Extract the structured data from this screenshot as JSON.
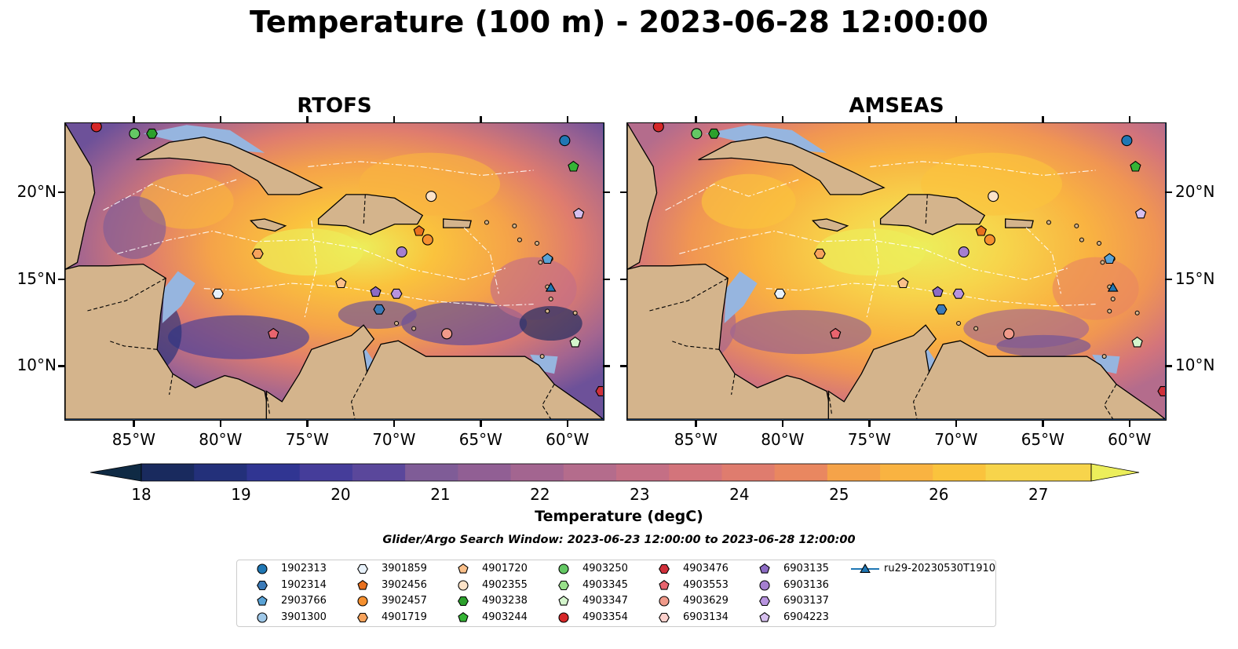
{
  "title": "Temperature (100 m) - 2023-06-28 12:00:00",
  "panels": [
    {
      "title": "RTOFS"
    },
    {
      "title": "AMSEAS"
    }
  ],
  "axes": {
    "lon_labels": [
      "85°W",
      "80°W",
      "75°W",
      "70°W",
      "65°W",
      "60°W"
    ],
    "lat_labels": [
      "20°N",
      "15°N",
      "10°N"
    ],
    "lon_range": [
      -89,
      -58
    ],
    "lat_range": [
      7,
      24
    ]
  },
  "colorbar": {
    "label": "Temperature (degC)",
    "ticks": [
      "18",
      "19",
      "20",
      "21",
      "22",
      "23",
      "24",
      "25",
      "26",
      "27"
    ],
    "min": 18,
    "max": 27,
    "extend": "both",
    "colors": [
      "#0f2a44",
      "#192a5e",
      "#23307a",
      "#303592",
      "#453d9a",
      "#5a479b",
      "#6d5199",
      "#7f5c97",
      "#915f94",
      "#a36590",
      "#b46c8c",
      "#c46f85",
      "#d3747b",
      "#df7c6e",
      "#e98760",
      "#f09553",
      "#f5a349",
      "#f9b341",
      "#fac33d",
      "#f7d44b",
      "#ecee5b"
    ]
  },
  "search_window": "Glider/Argo Search Window: 2023-06-23 12:00:00 to 2023-06-28 12:00:00",
  "legend": [
    {
      "label": "1902313",
      "marker": "circle",
      "color": "#1f77b4"
    },
    {
      "label": "1902314",
      "marker": "hexagon",
      "color": "#3b7ab8"
    },
    {
      "label": "2903766",
      "marker": "pentagon",
      "color": "#5aa3d6"
    },
    {
      "label": "3901300",
      "marker": "circle",
      "color": "#9fc8e8"
    },
    {
      "label": "3901859",
      "marker": "hexagon",
      "color": "#e8f2fb"
    },
    {
      "label": "3902456",
      "marker": "pentagon",
      "color": "#e8701e"
    },
    {
      "label": "3902457",
      "marker": "circle",
      "color": "#f5902f"
    },
    {
      "label": "4901719",
      "marker": "hexagon",
      "color": "#f7a35c"
    },
    {
      "label": "4901720",
      "marker": "pentagon",
      "color": "#fbc08a"
    },
    {
      "label": "4902355",
      "marker": "circle",
      "color": "#fde3c8"
    },
    {
      "label": "4903238",
      "marker": "hexagon",
      "color": "#2ca02c"
    },
    {
      "label": "4903244",
      "marker": "pentagon",
      "color": "#35b435"
    },
    {
      "label": "4903250",
      "marker": "circle",
      "color": "#64c864"
    },
    {
      "label": "4903345",
      "marker": "hexagon",
      "color": "#98df8a"
    },
    {
      "label": "4903347",
      "marker": "pentagon",
      "color": "#d4f5cc"
    },
    {
      "label": "4903354",
      "marker": "circle",
      "color": "#d62728"
    },
    {
      "label": "4903476",
      "marker": "hexagon",
      "color": "#d0303a"
    },
    {
      "label": "4903553",
      "marker": "pentagon",
      "color": "#e8646e"
    },
    {
      "label": "4903629",
      "marker": "circle",
      "color": "#f09a8a"
    },
    {
      "label": "6903134",
      "marker": "hexagon",
      "color": "#fcd0cc"
    },
    {
      "label": "6903135",
      "marker": "pentagon",
      "color": "#8c6bc4"
    },
    {
      "label": "6903136",
      "marker": "circle",
      "color": "#a57fd0"
    },
    {
      "label": "6903137",
      "marker": "hexagon",
      "color": "#b793de"
    },
    {
      "label": "6904223",
      "marker": "pentagon",
      "color": "#d6bfee"
    },
    {
      "label": "ru29-20230530T1910",
      "marker": "triangle-line",
      "color": "#1f77b4"
    }
  ],
  "map_markers": [
    {
      "id": "4903354",
      "lon": -87.2,
      "lat": 23.8
    },
    {
      "id": "4903250",
      "lon": -85.0,
      "lat": 23.4
    },
    {
      "id": "4903238",
      "lon": -84.0,
      "lat": 23.4
    },
    {
      "id": "1902313",
      "lon": -60.2,
      "lat": 23.0
    },
    {
      "id": "4903244",
      "lon": -59.7,
      "lat": 21.5
    },
    {
      "id": "4902355",
      "lon": -67.9,
      "lat": 19.8
    },
    {
      "id": "6904223",
      "lon": -59.4,
      "lat": 18.8
    },
    {
      "id": "3902456",
      "lon": -68.6,
      "lat": 17.8
    },
    {
      "id": "3902457",
      "lon": -68.1,
      "lat": 17.3
    },
    {
      "id": "4901719",
      "lon": -77.9,
      "lat": 16.5
    },
    {
      "id": "6903136",
      "lon": -69.6,
      "lat": 16.6
    },
    {
      "id": "2903766",
      "lon": -61.2,
      "lat": 16.2
    },
    {
      "id": "4901720",
      "lon": -73.1,
      "lat": 14.8
    },
    {
      "id": "ru29-20230530T1910",
      "lon": -61.0,
      "lat": 14.5
    },
    {
      "id": "6903135",
      "lon": -71.1,
      "lat": 14.3
    },
    {
      "id": "6903137",
      "lon": -69.9,
      "lat": 14.2
    },
    {
      "id": "3901859",
      "lon": -80.2,
      "lat": 14.2
    },
    {
      "id": "1902314",
      "lon": -70.9,
      "lat": 13.3
    },
    {
      "id": "4903553",
      "lon": -77.0,
      "lat": 11.9
    },
    {
      "id": "4903629",
      "lon": -67.0,
      "lat": 11.9
    },
    {
      "id": "4903347",
      "lon": -59.6,
      "lat": 11.4
    },
    {
      "id": "4903476",
      "lon": -58.1,
      "lat": 8.6
    }
  ]
}
